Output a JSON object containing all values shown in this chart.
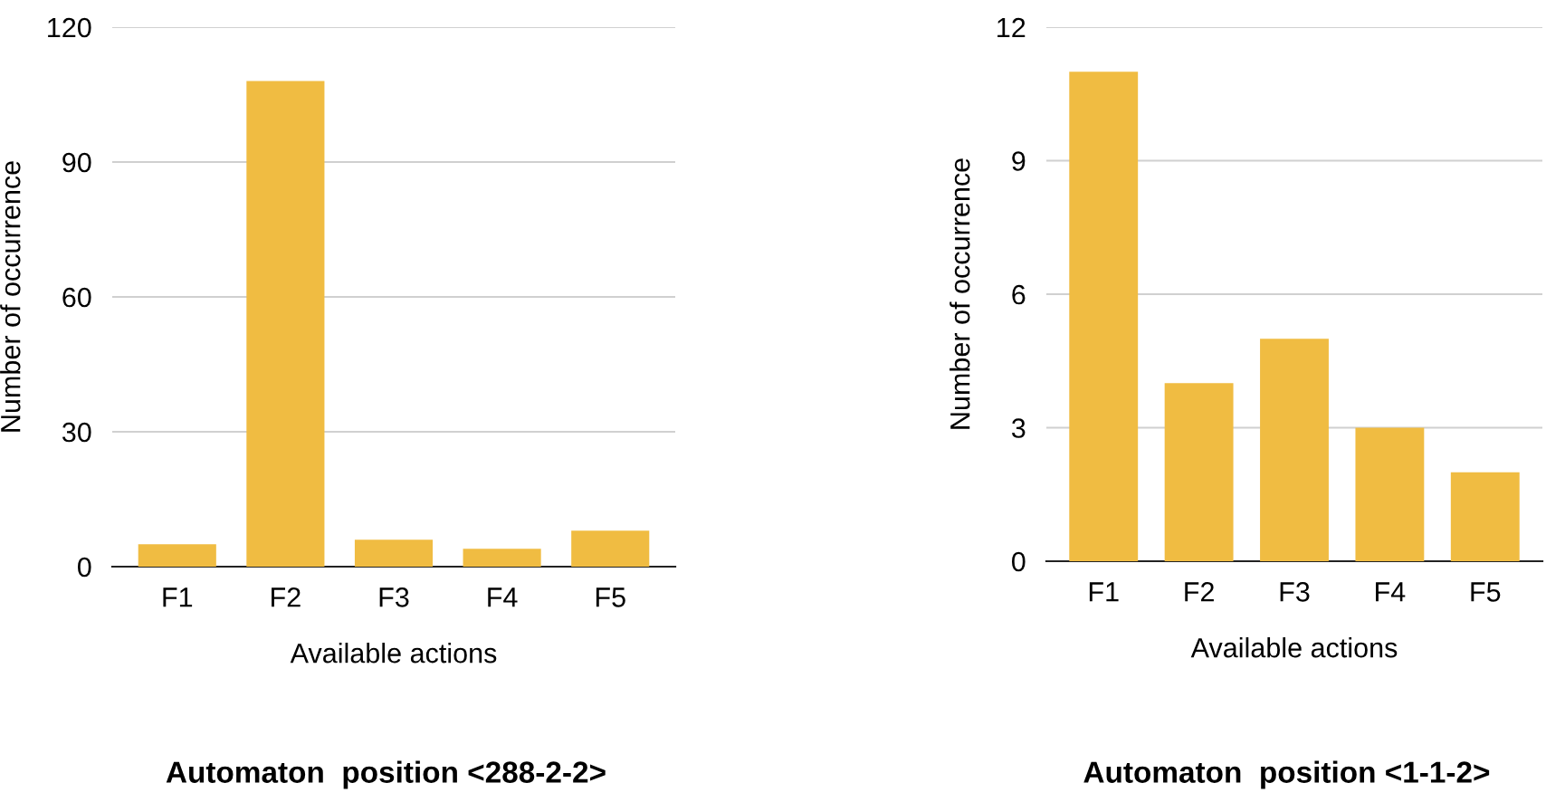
{
  "chart_data": [
    {
      "type": "bar",
      "title": "Automaton  position <288-2-2>",
      "xlabel": "Available actions",
      "ylabel": "Number of occurrence",
      "categories": [
        "F1",
        "F2",
        "F3",
        "F4",
        "F5"
      ],
      "values": [
        5,
        108,
        6,
        4,
        8
      ],
      "color": "#f0bc42",
      "ylim": [
        0,
        120
      ],
      "yticks": [
        0,
        30,
        60,
        90,
        120
      ],
      "grid": "y"
    },
    {
      "type": "bar",
      "title": "Automaton  position <1-1-2>",
      "xlabel": "Available actions",
      "ylabel": "Number of occurrence",
      "categories": [
        "F1",
        "F2",
        "F3",
        "F4",
        "F5"
      ],
      "values": [
        11,
        4,
        5,
        3,
        2
      ],
      "color": "#f0bc42",
      "ylim": [
        0,
        12
      ],
      "yticks": [
        0,
        3,
        6,
        9,
        12
      ],
      "grid": "y"
    }
  ]
}
